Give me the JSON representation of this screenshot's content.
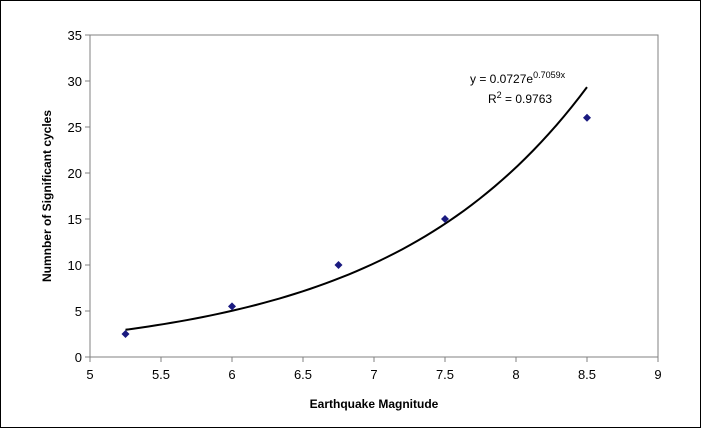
{
  "chart_data": {
    "type": "scatter",
    "title": "",
    "xlabel": "Earthquake Magnitude",
    "ylabel": "Numnber of Significant cycles",
    "xlim": [
      5,
      9
    ],
    "ylim": [
      0,
      35
    ],
    "xticks": [
      "5",
      "5.5",
      "6",
      "6.5",
      "7",
      "7.5",
      "8",
      "8.5",
      "9"
    ],
    "yticks": [
      "0",
      "5",
      "10",
      "15",
      "20",
      "25",
      "30",
      "35"
    ],
    "grid": false,
    "legend": "none",
    "points": [
      {
        "x": 5.25,
        "y": 2.5
      },
      {
        "x": 6.0,
        "y": 5.5
      },
      {
        "x": 6.75,
        "y": 10
      },
      {
        "x": 7.5,
        "y": 15
      },
      {
        "x": 8.5,
        "y": 26
      }
    ],
    "trendline": {
      "type": "exponential",
      "a": 0.0727,
      "b": 0.7059,
      "x_range": [
        5.25,
        8.5
      ],
      "equation_prefix": "y = 0.0727e",
      "equation_exponent": "0.7059x",
      "r2_prefix": "R",
      "r2_sup": "2",
      "r2_suffix": " = 0.9763"
    },
    "colors": {
      "marker": "#1a1a80",
      "trendline": "#000000",
      "axis": "#808080"
    }
  }
}
